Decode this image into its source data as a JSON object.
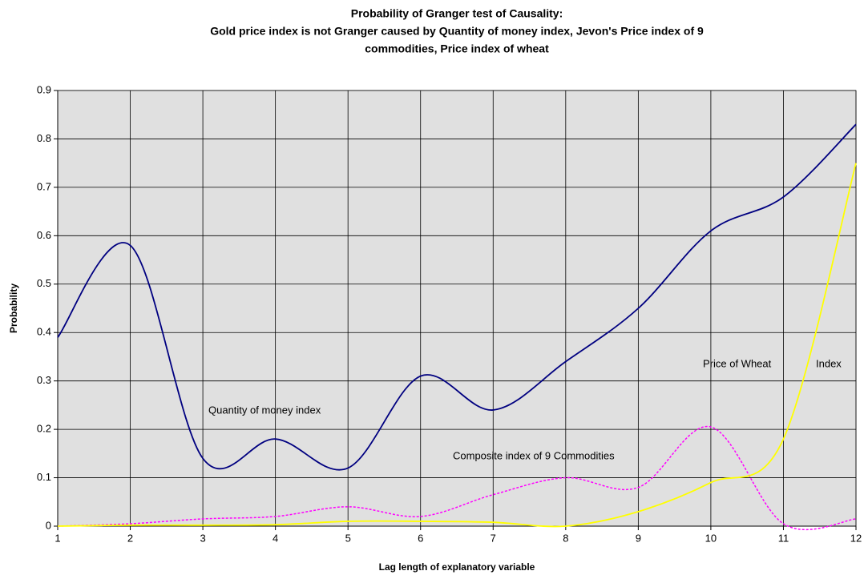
{
  "chart_data": {
    "type": "line",
    "title": [
      "Probability of Granger test of Causality:",
      "Gold price index is not Granger caused by Quantity of money index, Jevon's Price index of 9",
      "commodities, Price index of wheat"
    ],
    "x_label": "Lag length of explanatory variable",
    "y_label": "Probability",
    "x": [
      1,
      2,
      3,
      4,
      5,
      6,
      7,
      8,
      9,
      10,
      11,
      12
    ],
    "xlim": [
      1,
      12
    ],
    "xticks": [
      1,
      2,
      3,
      4,
      5,
      6,
      7,
      8,
      9,
      10,
      11,
      12
    ],
    "ylim": [
      0,
      0.9
    ],
    "yticks": [
      0,
      0.1,
      0.2,
      0.3,
      0.4,
      0.5,
      0.6,
      0.7,
      0.8,
      0.9
    ],
    "grid": true,
    "series": [
      {
        "name": "Quantity of money index",
        "color": "#000080",
        "dash": false,
        "values": [
          0.39,
          0.58,
          0.14,
          0.18,
          0.12,
          0.31,
          0.24,
          0.34,
          0.45,
          0.61,
          0.68,
          0.83
        ]
      },
      {
        "name": "Composite index of 9 Commodities",
        "color": "#ff00ff",
        "dash": true,
        "values": [
          0,
          0.005,
          0.015,
          0.02,
          0.04,
          0.02,
          0.065,
          0.1,
          0.08,
          0.205,
          0.005,
          0.015
        ]
      },
      {
        "name": "Price of Wheat",
        "color": "#ffff00",
        "dash": false,
        "values": [
          0,
          0.002,
          0.002,
          0.003,
          0.01,
          0.01,
          0.008,
          0,
          0.03,
          0.09,
          0.18,
          0.75
        ]
      }
    ],
    "annotations": [
      "Quantity of money index",
      "Composite index of 9 Commodities",
      "Price of Wheat",
      "Index"
    ]
  }
}
